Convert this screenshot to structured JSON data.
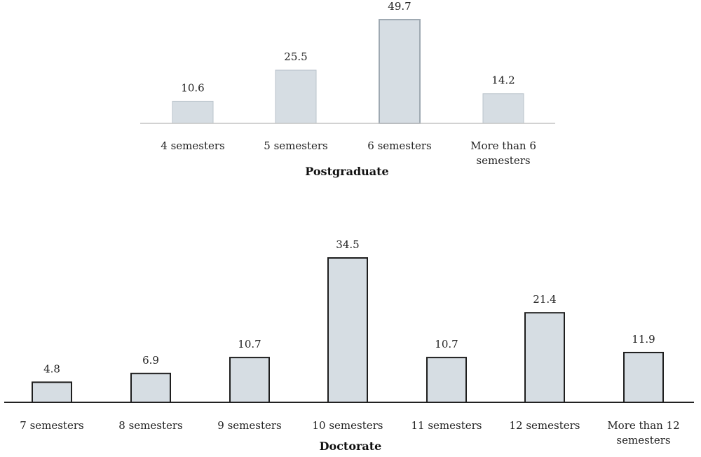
{
  "chart_data": [
    {
      "type": "bar",
      "title": "Postgraduate",
      "categories": [
        "4 semesters",
        "5 semesters",
        "6 semesters",
        "More than 6 semesters"
      ],
      "category_lines": [
        [
          "4 semesters"
        ],
        [
          "5 semesters"
        ],
        [
          "6 semesters"
        ],
        [
          "More than 6",
          "semesters"
        ]
      ],
      "values": [
        10.6,
        25.5,
        49.7,
        14.2
      ],
      "value_labels": [
        "10.6",
        "25.5",
        "49.7",
        "14.2"
      ],
      "ylim": [
        0,
        49.7
      ],
      "grid": false,
      "legend": "none"
    },
    {
      "type": "bar",
      "title": "Doctorate",
      "categories": [
        "7 semesters",
        "8 semesters",
        "9 semesters",
        "10 semesters",
        "11 semesters",
        "12 semesters",
        "More than 12 semesters"
      ],
      "category_lines": [
        [
          "7 semesters"
        ],
        [
          "8 semesters"
        ],
        [
          "9 semesters"
        ],
        [
          "10 semesters"
        ],
        [
          "11 semesters"
        ],
        [
          "12 semesters"
        ],
        [
          "More than 12",
          "semesters"
        ]
      ],
      "values": [
        4.8,
        6.9,
        10.7,
        34.5,
        10.7,
        21.4,
        11.9
      ],
      "value_labels": [
        "4.8",
        "6.9",
        "10.7",
        "34.5",
        "10.7",
        "21.4",
        "11.9"
      ],
      "ylim": [
        0,
        34.5
      ],
      "grid": false,
      "legend": "none"
    }
  ]
}
